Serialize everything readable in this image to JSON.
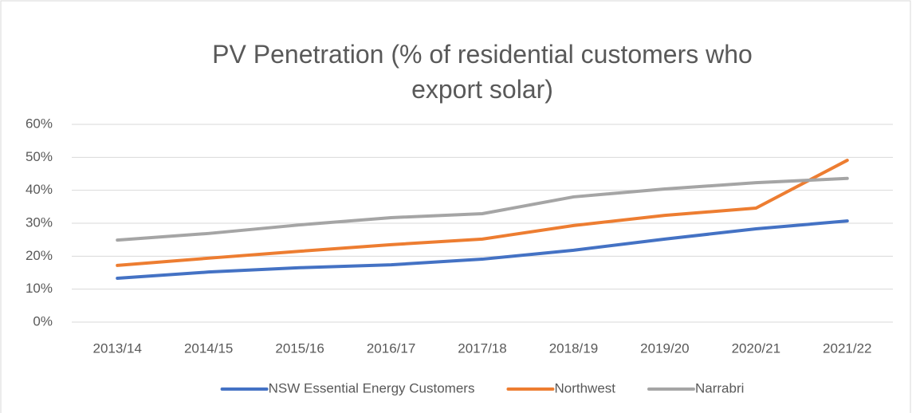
{
  "chart_data": {
    "type": "line",
    "title": "PV Penetration (% of residential customers who export solar)",
    "categories": [
      "2013/14",
      "2014/15",
      "2015/16",
      "2016/17",
      "2017/18",
      "2018/19",
      "2019/20",
      "2020/21",
      "2021/22"
    ],
    "series": [
      {
        "name": "NSW Essential Energy Customers",
        "color": "#4472c4",
        "values": [
          13.3,
          15.2,
          16.5,
          17.4,
          19.1,
          21.8,
          25.2,
          28.3,
          30.7
        ]
      },
      {
        "name": "Northwest",
        "color": "#ed7d31",
        "values": [
          17.2,
          19.4,
          21.5,
          23.5,
          25.2,
          29.3,
          32.4,
          34.6,
          49.1
        ]
      },
      {
        "name": "Narrabri",
        "color": "#a5a5a5",
        "values": [
          24.9,
          26.9,
          29.5,
          31.7,
          32.9,
          38.0,
          40.4,
          42.3,
          43.6
        ]
      }
    ],
    "ylim": [
      0,
      60
    ],
    "yticks": [
      {
        "value": 0,
        "label": "0%"
      },
      {
        "value": 10,
        "label": "10%"
      },
      {
        "value": 20,
        "label": "20%"
      },
      {
        "value": 30,
        "label": "30%"
      },
      {
        "value": 40,
        "label": "40%"
      },
      {
        "value": 50,
        "label": "50%"
      },
      {
        "value": 60,
        "label": "60%"
      }
    ],
    "grid": true,
    "legend": "bottom"
  }
}
